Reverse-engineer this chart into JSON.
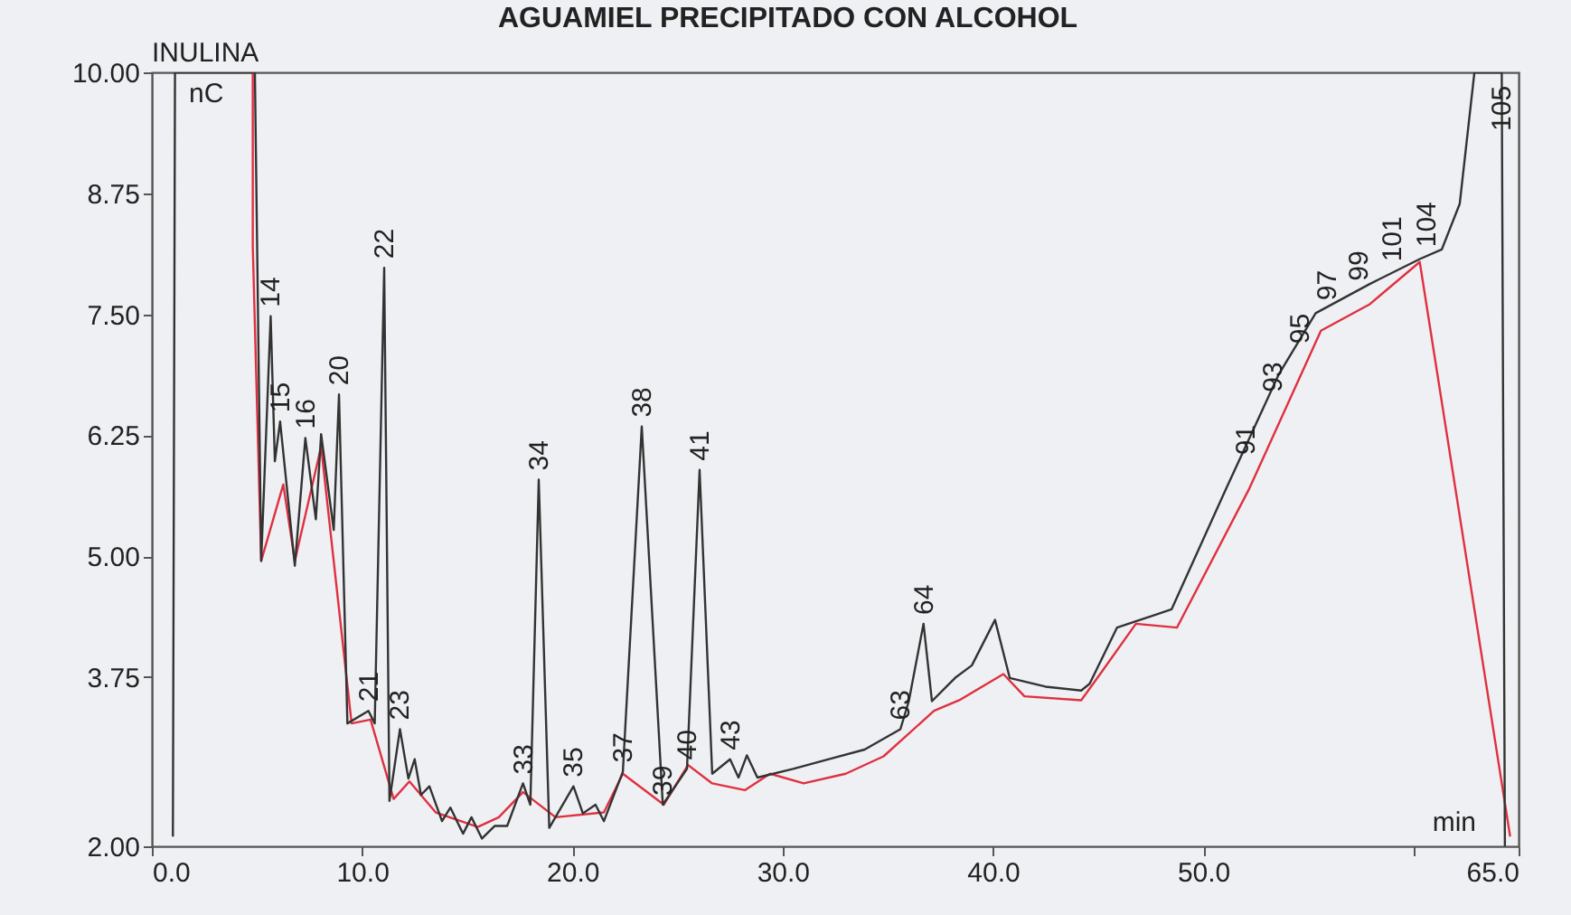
{
  "chart_data": {
    "type": "line",
    "title": "AGUAMIEL PRECIPITADO CON ALCOHOL",
    "xlabel": "min",
    "ylabel": "nC",
    "xlim": [
      0,
      65
    ],
    "ylim": [
      2,
      10
    ],
    "xticks": [
      {
        "value": 0,
        "label": "0.0"
      },
      {
        "value": 10,
        "label": "10.0"
      },
      {
        "value": 20,
        "label": "20.0"
      },
      {
        "value": 30,
        "label": "30.0"
      },
      {
        "value": 40,
        "label": "40.0"
      },
      {
        "value": 50,
        "label": "50.0"
      },
      {
        "value": 60,
        "label": null
      },
      {
        "value": 65,
        "label": "65.0"
      }
    ],
    "yticks": [
      {
        "value": 2,
        "label": "2.00"
      },
      {
        "value": 3.75,
        "label": "3.75"
      },
      {
        "value": 5,
        "label": "5.00"
      },
      {
        "value": 6.25,
        "label": "6.25"
      },
      {
        "value": 7.5,
        "label": "7.50"
      },
      {
        "value": 8.75,
        "label": "8.75"
      },
      {
        "value": 10,
        "label": "10.00"
      }
    ],
    "series": [
      {
        "color": "#333333",
        "x": [
          1.0,
          1.1,
          4.9,
          5.2,
          5.65,
          5.85,
          6.1,
          6.8,
          7.3,
          7.8,
          8.05,
          8.65,
          8.9,
          9.3,
          10.3,
          10.6,
          11.05,
          11.3,
          11.8,
          12.2,
          12.5,
          12.8,
          13.2,
          13.8,
          14.2,
          14.8,
          15.2,
          15.7,
          16.3,
          16.9,
          17.65,
          18.0,
          18.4,
          18.9,
          20.05,
          20.5,
          21.1,
          21.5,
          22.4,
          23.3,
          24.3,
          25.45,
          26.05,
          26.65,
          27.5,
          27.9,
          28.3,
          28.8,
          30.5,
          32.2,
          33.9,
          35.6,
          36.0,
          36.7,
          37.1,
          38.2,
          39.0,
          40.1,
          40.8,
          42.5,
          44.2,
          44.6,
          45.9,
          48.5,
          51.1,
          53.6,
          55.35,
          57.9,
          60.3,
          61.35,
          62.2,
          62.9,
          64.2,
          64.35
        ],
        "values": [
          2.1,
          10,
          10,
          4.95,
          7.48,
          5.98,
          6.39,
          4.9,
          6.22,
          5.38,
          6.26,
          5.27,
          6.67,
          3.27,
          3.4,
          3.27,
          7.98,
          2.47,
          3.21,
          2.7,
          2.9,
          2.53,
          2.62,
          2.26,
          2.4,
          2.13,
          2.3,
          2.08,
          2.21,
          2.21,
          2.65,
          2.43,
          5.79,
          2.19,
          2.62,
          2.34,
          2.43,
          2.26,
          2.77,
          6.34,
          2.43,
          2.8,
          5.89,
          2.75,
          2.9,
          2.71,
          2.94,
          2.71,
          2.8,
          2.9,
          3.0,
          3.21,
          3.5,
          4.3,
          3.5,
          3.74,
          3.87,
          4.34,
          3.74,
          3.65,
          3.61,
          3.68,
          4.26,
          4.45,
          5.7,
          6.88,
          7.51,
          7.81,
          8.07,
          8.17,
          8.64,
          10,
          10,
          2.0
        ]
      },
      {
        "color": "#e03040",
        "x": [
          4.8,
          4.8,
          5.2,
          6.25,
          6.8,
          8.05,
          9.5,
          10.4,
          11.5,
          12.25,
          13.5,
          15.5,
          16.5,
          17.65,
          19.2,
          21.5,
          22.4,
          24.35,
          25.5,
          26.65,
          28.2,
          29.4,
          31.0,
          33.0,
          34.8,
          37.2,
          38.4,
          40.5,
          41.5,
          44.2,
          45.1,
          46.8,
          48.75,
          52.2,
          55.6,
          57.9,
          60.3,
          64.6
        ],
        "values": [
          10,
          8.2,
          4.95,
          5.74,
          4.95,
          6.13,
          3.27,
          3.31,
          2.49,
          2.67,
          2.35,
          2.2,
          2.3,
          2.56,
          2.3,
          2.35,
          2.75,
          2.43,
          2.84,
          2.65,
          2.58,
          2.75,
          2.65,
          2.75,
          2.93,
          3.4,
          3.51,
          3.78,
          3.55,
          3.51,
          3.78,
          4.3,
          4.26,
          5.7,
          7.33,
          7.6,
          8.04,
          2.1
        ]
      }
    ],
    "annotations": [
      "INULINA",
      {
        "text": "14",
        "x": 5.65,
        "y": 7.48
      },
      {
        "text": "15",
        "x": 6.1,
        "y": 6.39
      },
      {
        "text": "16",
        "x": 7.3,
        "y": 6.22
      },
      {
        "text": "20",
        "x": 8.9,
        "y": 6.67
      },
      {
        "text": "21",
        "x": 10.3,
        "y": 3.4
      },
      {
        "text": "22",
        "x": 11.05,
        "y": 7.98
      },
      {
        "text": "23",
        "x": 11.8,
        "y": 3.21
      },
      {
        "text": "33",
        "x": 17.65,
        "y": 2.65
      },
      {
        "text": "34",
        "x": 18.4,
        "y": 5.79
      },
      {
        "text": "35",
        "x": 20.05,
        "y": 2.62
      },
      {
        "text": "37",
        "x": 22.4,
        "y": 2.77
      },
      {
        "text": "38",
        "x": 23.3,
        "y": 6.34
      },
      {
        "text": "39",
        "x": 24.3,
        "y": 2.43
      },
      {
        "text": "40",
        "x": 25.45,
        "y": 2.8
      },
      {
        "text": "41",
        "x": 26.05,
        "y": 5.89
      },
      {
        "text": "43",
        "x": 27.5,
        "y": 2.9
      },
      {
        "text": "63",
        "x": 35.6,
        "y": 3.21
      },
      {
        "text": "64",
        "x": 36.7,
        "y": 4.3
      },
      {
        "text": "91",
        "x": 52.0,
        "y": 5.95
      },
      {
        "text": "93",
        "x": 53.3,
        "y": 6.6
      },
      {
        "text": "95",
        "x": 54.6,
        "y": 7.1
      },
      {
        "text": "97",
        "x": 55.9,
        "y": 7.55
      },
      {
        "text": "99",
        "x": 57.4,
        "y": 7.75
      },
      {
        "text": "101",
        "x": 59.0,
        "y": 7.95
      },
      {
        "text": "104",
        "x": 60.6,
        "y": 8.1
      },
      {
        "text": "105",
        "x": 64.2,
        "y": 9.3
      }
    ]
  }
}
